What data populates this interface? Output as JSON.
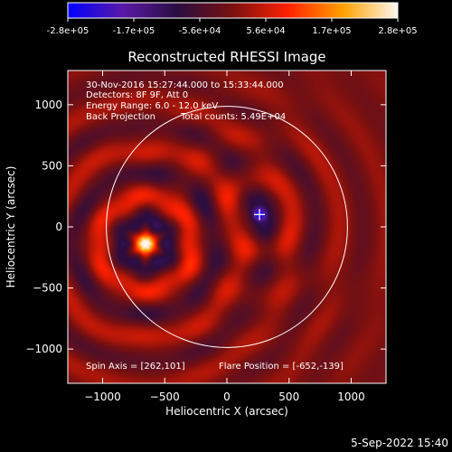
{
  "colorbar": {
    "tick_labels": [
      "-2.8e+05",
      "-1.7e+05",
      "-5.6e+04",
      "5.6e+04",
      "1.7e+05",
      "2.8e+05"
    ],
    "min": -280000,
    "max": 280000,
    "colors": [
      "#0000ff",
      "#5a1aa8",
      "#2a0d40",
      "#7a1010",
      "#ff2000",
      "#ffa000",
      "#fff8f0"
    ]
  },
  "chart_data": {
    "type": "heatmap",
    "title": "Reconstructed RHESSI Image",
    "xlabel": "Heliocentric X (arcsec)",
    "ylabel": "Heliocentric Y (arcsec)",
    "xlim": [
      -1280,
      1280
    ],
    "ylim": [
      -1280,
      1280
    ],
    "x_ticks": [
      -1000,
      -500,
      0,
      500,
      1000
    ],
    "y_ticks": [
      -1000,
      -500,
      0,
      500,
      1000
    ],
    "x_tick_labels": [
      "−1000",
      "−500",
      "0",
      "500",
      "1000"
    ],
    "y_tick_labels": [
      "−1000",
      "−500",
      "0",
      "500",
      "1000"
    ],
    "solar_limb_radius_arcsec": 970,
    "flare_position": [
      -652,
      -139
    ],
    "source_peak_value": 280000,
    "marker_position": [
      262,
      101
    ],
    "marker_peak_value": -280000
  },
  "annotations": {
    "time_range": "30-Nov-2016 15:27:44.000 to 15:33:44.000",
    "detectors": "Detectors: 8F 9F, Att 0",
    "energy_range": "Energy Range: 6.0 - 12.0 keV",
    "method": "Back Projection",
    "total_counts": "Total counts: 5.49E+04",
    "spin_axis": "Spin Axis = [262,101]",
    "flare_position_text": "Flare Position = [-652,-139]"
  },
  "footer": {
    "date": "5-Sep-2022 15:40"
  }
}
